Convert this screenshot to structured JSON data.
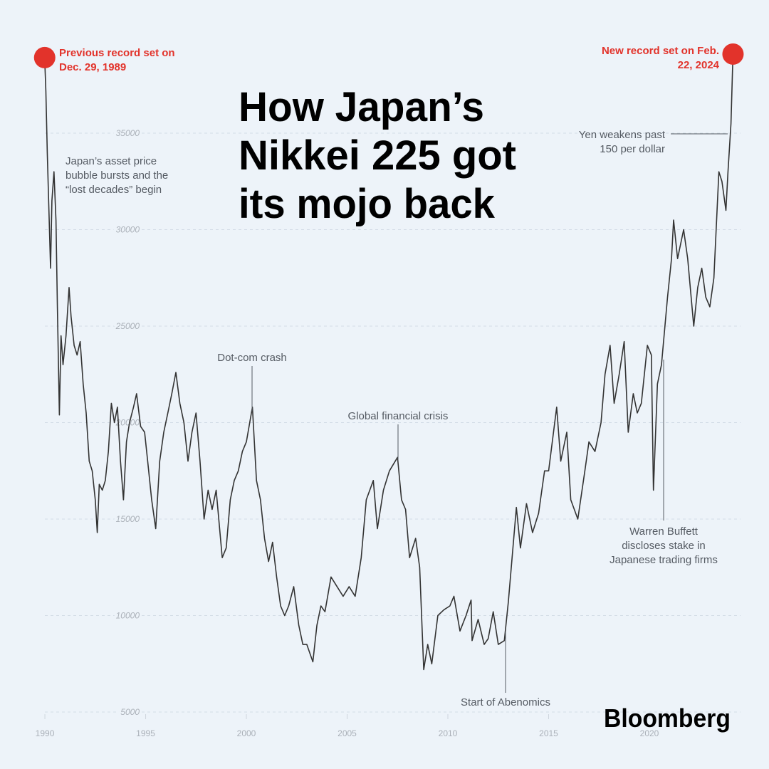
{
  "chart_data": {
    "type": "line",
    "title": [
      "How Japan’s",
      "Nikkei 225 got",
      "its mojo back"
    ],
    "source": "Bloomberg",
    "color": "#333333",
    "highlight_color": "#e2332b",
    "grid": true,
    "xlim": [
      1989.9,
      2025
    ],
    "ylim": [
      5000,
      40000
    ],
    "xticks": [
      1990,
      1995,
      2000,
      2005,
      2010,
      2015,
      2020
    ],
    "yticks": [
      5000,
      10000,
      15000,
      20000,
      25000,
      30000,
      35000
    ],
    "x": [
      1989.99,
      1990.05,
      1990.12,
      1990.2,
      1990.28,
      1990.35,
      1990.45,
      1990.55,
      1990.62,
      1990.72,
      1990.8,
      1990.9,
      1991.05,
      1991.2,
      1991.3,
      1991.45,
      1991.6,
      1991.75,
      1991.9,
      1992.05,
      1992.2,
      1992.35,
      1992.5,
      1992.6,
      1992.7,
      1992.85,
      1993.0,
      1993.15,
      1993.3,
      1993.45,
      1993.6,
      1993.75,
      1993.9,
      1994.05,
      1994.2,
      1994.4,
      1994.55,
      1994.75,
      1994.95,
      1995.1,
      1995.3,
      1995.5,
      1995.7,
      1995.9,
      1996.1,
      1996.3,
      1996.5,
      1996.7,
      1996.9,
      1997.1,
      1997.3,
      1997.5,
      1997.7,
      1997.9,
      1998.1,
      1998.3,
      1998.5,
      1998.8,
      1999.0,
      1999.2,
      1999.4,
      1999.6,
      1999.8,
      2000.0,
      2000.3,
      2000.5,
      2000.7,
      2000.9,
      2001.1,
      2001.3,
      2001.5,
      2001.7,
      2001.9,
      2002.1,
      2002.35,
      2002.6,
      2002.8,
      2003.0,
      2003.3,
      2003.5,
      2003.7,
      2003.9,
      2004.2,
      2004.5,
      2004.8,
      2005.1,
      2005.4,
      2005.7,
      2005.95,
      2006.3,
      2006.5,
      2006.8,
      2007.1,
      2007.5,
      2007.7,
      2007.9,
      2008.1,
      2008.4,
      2008.6,
      2008.8,
      2009.0,
      2009.2,
      2009.5,
      2009.8,
      2010.1,
      2010.3,
      2010.6,
      2010.9,
      2011.15,
      2011.2,
      2011.5,
      2011.8,
      2012.0,
      2012.25,
      2012.5,
      2012.8,
      2013.0,
      2013.4,
      2013.6,
      2013.9,
      2014.2,
      2014.5,
      2014.8,
      2015.0,
      2015.4,
      2015.6,
      2015.9,
      2016.1,
      2016.45,
      2016.8,
      2017.0,
      2017.3,
      2017.6,
      2017.8,
      2018.05,
      2018.25,
      2018.5,
      2018.75,
      2018.95,
      2019.2,
      2019.4,
      2019.6,
      2019.9,
      2020.1,
      2020.2,
      2020.4,
      2020.6,
      2020.9,
      2021.1,
      2021.2,
      2021.4,
      2021.7,
      2021.9,
      2022.2,
      2022.4,
      2022.6,
      2022.8,
      2023.0,
      2023.2,
      2023.45,
      2023.6,
      2023.8,
      2023.9,
      2024.05,
      2024.15
    ],
    "values": [
      38915,
      37200,
      34000,
      31000,
      28000,
      31500,
      33000,
      30500,
      26000,
      20400,
      24500,
      23000,
      24500,
      27000,
      25500,
      24000,
      23500,
      24200,
      22000,
      20500,
      18000,
      17500,
      16000,
      14300,
      16800,
      16500,
      17000,
      18500,
      21000,
      20000,
      20800,
      18000,
      16000,
      19000,
      20000,
      20800,
      21500,
      19800,
      19500,
      18000,
      16000,
      14500,
      18000,
      19500,
      20500,
      21500,
      22600,
      21000,
      20000,
      18000,
      19500,
      20500,
      18000,
      15000,
      16500,
      15500,
      16500,
      13000,
      13500,
      16000,
      17000,
      17500,
      18500,
      19000,
      20800,
      17000,
      16000,
      14000,
      12800,
      13800,
      12000,
      10500,
      10000,
      10500,
      11500,
      9500,
      8500,
      8500,
      7600,
      9500,
      10500,
      10200,
      12000,
      11500,
      11000,
      11500,
      11000,
      13000,
      16000,
      17000,
      14500,
      16500,
      17500,
      18200,
      16000,
      15500,
      13000,
      14000,
      12500,
      7200,
      8500,
      7500,
      10000,
      10300,
      10500,
      11000,
      9200,
      10000,
      10800,
      8700,
      9800,
      8500,
      8800,
      10200,
      8500,
      8700,
      10700,
      15600,
      13500,
      15800,
      14300,
      15300,
      17500,
      17500,
      20800,
      18000,
      19500,
      16000,
      15000,
      17500,
      19000,
      18500,
      20000,
      22500,
      24000,
      21000,
      22500,
      24200,
      19500,
      21500,
      20500,
      21000,
      24000,
      23500,
      16500,
      22000,
      23000,
      26500,
      28500,
      30500,
      28500,
      30000,
      28500,
      25000,
      27000,
      28000,
      26500,
      26000,
      27500,
      33000,
      32500,
      31000,
      33000,
      35500,
      39098
    ],
    "annotations": [
      {
        "lines": [
          "Previous record set on",
          "Dec. 29, 1989"
        ]
      },
      {
        "lines": [
          "New record set on Feb.",
          "22, 2024"
        ]
      },
      {
        "lines": [
          "Japan’s asset price",
          "bubble bursts and the",
          "“lost decades” begin"
        ]
      },
      {
        "lines": [
          "Dot-com crash"
        ]
      },
      {
        "lines": [
          "Global financial crisis"
        ]
      },
      {
        "lines": [
          "Start of Abenomics"
        ]
      },
      {
        "lines": [
          "Warren Buffett",
          "discloses stake in",
          "Japanese trading firms"
        ]
      },
      {
        "lines": [
          "Yen weakens past",
          "150 per dollar"
        ]
      }
    ]
  }
}
